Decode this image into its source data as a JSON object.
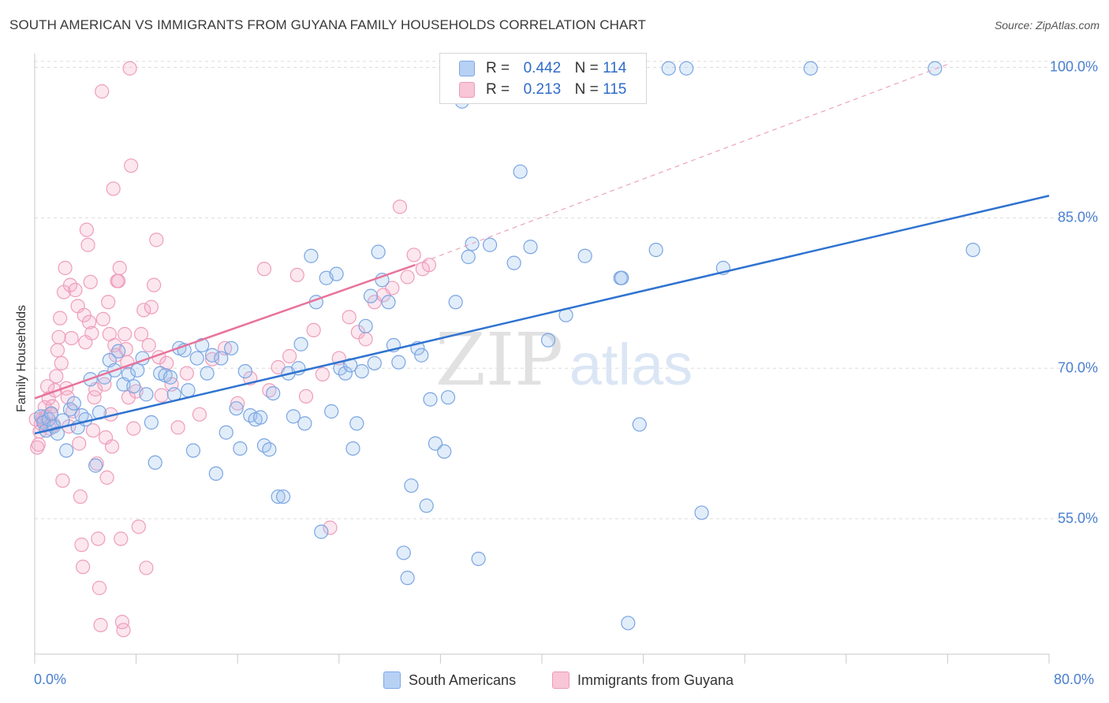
{
  "title": "SOUTH AMERICAN VS IMMIGRANTS FROM GUYANA FAMILY HOUSEHOLDS CORRELATION CHART",
  "source": "Source: ZipAtlas.com",
  "watermark": {
    "zip": "ZIP",
    "atlas": "atlas"
  },
  "legend": {
    "r_label": "R =",
    "n_label": "N =",
    "rows": [
      {
        "r": "0.442",
        "n": "114",
        "color": "#7ea7e3"
      },
      {
        "r": "0.213",
        "n": "115",
        "color": "#ec9bb7"
      }
    ]
  },
  "bottom_legend": [
    "South Americans",
    "Immigrants from Guyana"
  ],
  "chart_data": {
    "type": "scatter",
    "title": "SOUTH AMERICAN VS IMMIGRANTS FROM GUYANA FAMILY HOUSEHOLDS CORRELATION CHART",
    "xlabel": "",
    "ylabel": "Family Households",
    "xlim": [
      0,
      80
    ],
    "ylim": [
      41.5,
      102
    ],
    "x_ticks": [
      "0.0%",
      "80.0%"
    ],
    "y_ticks": [
      "55.0%",
      "70.0%",
      "85.0%",
      "100.0%"
    ],
    "y_tick_values": [
      55,
      70,
      85,
      100
    ],
    "grid": "horizontal dashed",
    "legend_position": "top-center",
    "colors": {
      "south_americans": "#4a86d8",
      "guyana": "#e8739a"
    },
    "series": [
      {
        "name": "South Americans",
        "r": 0.442,
        "n": 114,
        "trend": {
          "x0": 0,
          "y0": 63.5,
          "x1": 80,
          "y1": 87.2
        },
        "points": [
          [
            0.5,
            65.2
          ],
          [
            0.7,
            64.6
          ],
          [
            0.9,
            63.8
          ],
          [
            1.1,
            64.9
          ],
          [
            1.3,
            65.5
          ],
          [
            1.5,
            64.2
          ],
          [
            1.8,
            63.5
          ],
          [
            2.2,
            64.8
          ],
          [
            2.5,
            61.8
          ],
          [
            2.8,
            65.9
          ],
          [
            3.1,
            66.5
          ],
          [
            3.4,
            64.1
          ],
          [
            3.7,
            65.3
          ],
          [
            4.0,
            64.9
          ],
          [
            4.4,
            68.9
          ],
          [
            4.8,
            60.3
          ],
          [
            5.1,
            65.6
          ],
          [
            5.5,
            69.1
          ],
          [
            5.9,
            70.8
          ],
          [
            6.3,
            69.8
          ],
          [
            6.6,
            71.7
          ],
          [
            7.0,
            68.4
          ],
          [
            7.4,
            69.4
          ],
          [
            7.8,
            68.2
          ],
          [
            8.1,
            69.8
          ],
          [
            8.5,
            71.0
          ],
          [
            8.8,
            67.4
          ],
          [
            9.2,
            64.6
          ],
          [
            9.5,
            60.6
          ],
          [
            9.9,
            69.5
          ],
          [
            10.3,
            69.3
          ],
          [
            10.7,
            69.1
          ],
          [
            11.0,
            67.4
          ],
          [
            11.4,
            72.0
          ],
          [
            11.8,
            71.8
          ],
          [
            12.1,
            67.8
          ],
          [
            12.5,
            61.8
          ],
          [
            12.8,
            71.0
          ],
          [
            13.2,
            72.3
          ],
          [
            13.6,
            69.5
          ],
          [
            14.0,
            71.3
          ],
          [
            14.3,
            59.5
          ],
          [
            14.7,
            71.0
          ],
          [
            15.1,
            63.6
          ],
          [
            15.5,
            72.0
          ],
          [
            15.9,
            66.0
          ],
          [
            16.2,
            62.0
          ],
          [
            16.6,
            69.7
          ],
          [
            17.0,
            65.3
          ],
          [
            17.4,
            64.9
          ],
          [
            17.8,
            65.1
          ],
          [
            18.1,
            62.3
          ],
          [
            18.5,
            61.9
          ],
          [
            18.8,
            67.5
          ],
          [
            19.2,
            57.2
          ],
          [
            19.6,
            57.2
          ],
          [
            20.0,
            69.5
          ],
          [
            20.4,
            65.2
          ],
          [
            20.8,
            70.0
          ],
          [
            21.0,
            72.4
          ],
          [
            21.3,
            64.5
          ],
          [
            21.8,
            81.2
          ],
          [
            22.2,
            76.6
          ],
          [
            22.6,
            53.7
          ],
          [
            23.0,
            79.0
          ],
          [
            23.4,
            65.7
          ],
          [
            23.8,
            79.4
          ],
          [
            24.1,
            70.0
          ],
          [
            24.5,
            69.5
          ],
          [
            24.9,
            70.3
          ],
          [
            25.1,
            62.0
          ],
          [
            25.4,
            64.5
          ],
          [
            25.8,
            69.7
          ],
          [
            26.1,
            74.2
          ],
          [
            26.5,
            77.2
          ],
          [
            26.8,
            70.5
          ],
          [
            27.1,
            81.6
          ],
          [
            27.4,
            78.8
          ],
          [
            27.9,
            76.6
          ],
          [
            28.3,
            72.3
          ],
          [
            28.7,
            70.6
          ],
          [
            29.1,
            51.6
          ],
          [
            29.4,
            49.1
          ],
          [
            29.7,
            58.3
          ],
          [
            30.2,
            72.0
          ],
          [
            30.5,
            71.3
          ],
          [
            30.9,
            56.3
          ],
          [
            31.2,
            66.9
          ],
          [
            31.6,
            62.5
          ],
          [
            32.3,
            61.7
          ],
          [
            32.6,
            67.1
          ],
          [
            33.2,
            76.6
          ],
          [
            33.7,
            96.6
          ],
          [
            34.2,
            81.1
          ],
          [
            34.5,
            82.4
          ],
          [
            35.0,
            51.0
          ],
          [
            35.9,
            82.3
          ],
          [
            37.8,
            80.5
          ],
          [
            38.3,
            89.6
          ],
          [
            39.1,
            82.1
          ],
          [
            40.5,
            72.8
          ],
          [
            41.9,
            75.3
          ],
          [
            43.4,
            81.2
          ],
          [
            46.2,
            79.0
          ],
          [
            46.3,
            79.0
          ],
          [
            46.8,
            44.6
          ],
          [
            47.7,
            64.4
          ],
          [
            49.0,
            81.8
          ],
          [
            50.0,
            99.9
          ],
          [
            51.4,
            99.9
          ],
          [
            52.6,
            55.6
          ],
          [
            54.3,
            80.0
          ],
          [
            61.2,
            99.9
          ],
          [
            71.0,
            99.9
          ],
          [
            74.0,
            81.8
          ]
        ]
      },
      {
        "name": "Immigrants from Guyana",
        "r": 0.213,
        "n": 115,
        "trend": {
          "x0": 0,
          "y0": 67.0,
          "x1": 30,
          "y1": 80.3,
          "extended_x1": 72,
          "extended_y1": 100.3
        },
        "points": [
          [
            0.1,
            64.9
          ],
          [
            0.2,
            62.1
          ],
          [
            0.3,
            62.4
          ],
          [
            0.4,
            63.7
          ],
          [
            0.5,
            64.5
          ],
          [
            0.6,
            65.0
          ],
          [
            0.7,
            64.8
          ],
          [
            0.8,
            66.1
          ],
          [
            0.9,
            65.2
          ],
          [
            1.0,
            68.2
          ],
          [
            1.1,
            67.0
          ],
          [
            1.2,
            64.0
          ],
          [
            1.3,
            65.4
          ],
          [
            1.4,
            66.2
          ],
          [
            1.5,
            64.4
          ],
          [
            1.6,
            67.8
          ],
          [
            1.7,
            69.2
          ],
          [
            1.8,
            71.8
          ],
          [
            1.9,
            73.1
          ],
          [
            2.0,
            75.0
          ],
          [
            2.1,
            70.5
          ],
          [
            2.2,
            58.8
          ],
          [
            2.3,
            77.6
          ],
          [
            2.4,
            80.0
          ],
          [
            2.5,
            68.0
          ],
          [
            2.6,
            67.1
          ],
          [
            2.7,
            64.2
          ],
          [
            2.8,
            78.3
          ],
          [
            2.9,
            73.0
          ],
          [
            3.0,
            65.7
          ],
          [
            3.2,
            77.8
          ],
          [
            3.4,
            76.2
          ],
          [
            3.5,
            62.5
          ],
          [
            3.6,
            57.2
          ],
          [
            3.7,
            52.4
          ],
          [
            3.8,
            50.2
          ],
          [
            3.9,
            75.3
          ],
          [
            4.0,
            72.6
          ],
          [
            4.1,
            83.8
          ],
          [
            4.2,
            82.3
          ],
          [
            4.3,
            74.6
          ],
          [
            4.4,
            78.6
          ],
          [
            4.5,
            73.5
          ],
          [
            4.6,
            63.8
          ],
          [
            4.7,
            67.1
          ],
          [
            4.8,
            67.9
          ],
          [
            4.9,
            60.5
          ],
          [
            5.0,
            53.0
          ],
          [
            5.1,
            48.1
          ],
          [
            5.2,
            44.4
          ],
          [
            5.3,
            97.6
          ],
          [
            5.4,
            74.9
          ],
          [
            5.5,
            68.4
          ],
          [
            5.6,
            63.1
          ],
          [
            5.7,
            59.1
          ],
          [
            5.8,
            76.6
          ],
          [
            5.9,
            73.4
          ],
          [
            6.0,
            65.4
          ],
          [
            6.1,
            62.2
          ],
          [
            6.2,
            87.9
          ],
          [
            6.3,
            72.3
          ],
          [
            6.4,
            71.3
          ],
          [
            6.5,
            78.7
          ],
          [
            6.6,
            78.7
          ],
          [
            6.7,
            80.0
          ],
          [
            6.8,
            53.0
          ],
          [
            6.9,
            44.7
          ],
          [
            7.0,
            43.9
          ],
          [
            7.1,
            73.4
          ],
          [
            7.2,
            71.9
          ],
          [
            7.3,
            70.6
          ],
          [
            7.4,
            67.1
          ],
          [
            7.5,
            99.9
          ],
          [
            7.6,
            90.2
          ],
          [
            7.8,
            64.0
          ],
          [
            8.0,
            67.7
          ],
          [
            8.2,
            54.2
          ],
          [
            8.4,
            73.4
          ],
          [
            8.6,
            75.8
          ],
          [
            8.8,
            50.1
          ],
          [
            9.0,
            72.3
          ],
          [
            9.2,
            76.1
          ],
          [
            9.4,
            78.3
          ],
          [
            9.6,
            82.8
          ],
          [
            9.8,
            71.1
          ],
          [
            10.0,
            67.3
          ],
          [
            10.4,
            70.5
          ],
          [
            10.8,
            68.4
          ],
          [
            11.3,
            64.1
          ],
          [
            12.0,
            69.5
          ],
          [
            13.0,
            65.4
          ],
          [
            14.0,
            70.9
          ],
          [
            15.0,
            72.0
          ],
          [
            16.0,
            66.5
          ],
          [
            17.0,
            69.0
          ],
          [
            18.1,
            79.9
          ],
          [
            18.5,
            67.8
          ],
          [
            19.2,
            70.1
          ],
          [
            20.1,
            71.2
          ],
          [
            20.7,
            79.3
          ],
          [
            21.4,
            67.2
          ],
          [
            22.0,
            73.8
          ],
          [
            22.7,
            69.4
          ],
          [
            23.3,
            54.1
          ],
          [
            24.0,
            71.0
          ],
          [
            24.8,
            75.1
          ],
          [
            25.5,
            73.6
          ],
          [
            26.1,
            72.9
          ],
          [
            26.8,
            76.6
          ],
          [
            27.5,
            77.3
          ],
          [
            28.2,
            78.0
          ],
          [
            28.8,
            86.1
          ],
          [
            29.4,
            79.1
          ],
          [
            29.9,
            81.3
          ],
          [
            30.6,
            79.9
          ],
          [
            31.1,
            80.3
          ]
        ]
      }
    ]
  }
}
